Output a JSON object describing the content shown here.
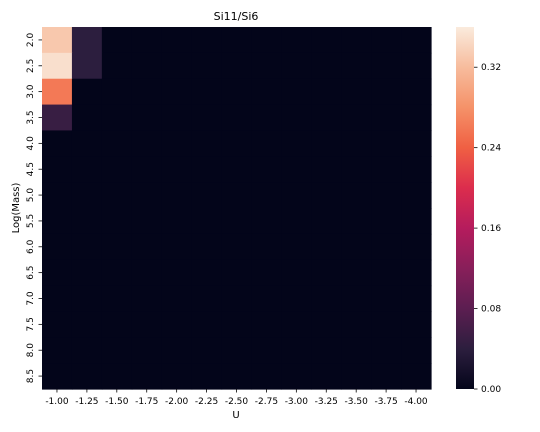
{
  "chart_data": {
    "type": "heatmap",
    "title": "Si11/Si6",
    "xlabel": "U",
    "ylabel": "Log(Mass)",
    "x_categories": [
      "-1.00",
      "-1.25",
      "-1.50",
      "-1.75",
      "-2.00",
      "-2.25",
      "-2.50",
      "-2.75",
      "-3.00",
      "-3.25",
      "-3.50",
      "-3.75",
      "-4.00"
    ],
    "y_categories": [
      "2.0",
      "2.5",
      "3.0",
      "3.5",
      "4.0",
      "4.5",
      "5.0",
      "5.5",
      "6.0",
      "6.5",
      "7.0",
      "7.5",
      "8.0",
      "8.5"
    ],
    "values": [
      [
        0.33,
        0.04,
        0,
        0,
        0,
        0,
        0,
        0,
        0,
        0,
        0,
        0,
        0
      ],
      [
        0.35,
        0.04,
        0,
        0,
        0,
        0,
        0,
        0,
        0,
        0,
        0,
        0,
        0
      ],
      [
        0.26,
        0,
        0,
        0,
        0,
        0,
        0,
        0,
        0,
        0,
        0,
        0,
        0
      ],
      [
        0.05,
        0,
        0,
        0,
        0,
        0,
        0,
        0,
        0,
        0,
        0,
        0,
        0
      ],
      [
        0,
        0,
        0,
        0,
        0,
        0,
        0,
        0,
        0,
        0,
        0,
        0,
        0
      ],
      [
        0,
        0,
        0,
        0,
        0,
        0,
        0,
        0,
        0,
        0,
        0,
        0,
        0
      ],
      [
        0,
        0,
        0,
        0,
        0,
        0,
        0,
        0,
        0,
        0,
        0,
        0,
        0
      ],
      [
        0,
        0,
        0,
        0,
        0,
        0,
        0,
        0,
        0,
        0,
        0,
        0,
        0
      ],
      [
        0,
        0,
        0,
        0,
        0,
        0,
        0,
        0,
        0,
        0,
        0,
        0,
        0
      ],
      [
        0,
        0,
        0,
        0,
        0,
        0,
        0,
        0,
        0,
        0,
        0,
        0,
        0
      ],
      [
        0,
        0,
        0,
        0,
        0,
        0,
        0,
        0,
        0,
        0,
        0,
        0,
        0
      ],
      [
        0,
        0,
        0,
        0,
        0,
        0,
        0,
        0,
        0,
        0,
        0,
        0,
        0
      ],
      [
        0,
        0,
        0,
        0,
        0,
        0,
        0,
        0,
        0,
        0,
        0,
        0,
        0
      ],
      [
        0,
        0,
        0,
        0,
        0,
        0,
        0,
        0,
        0,
        0,
        0,
        0,
        0
      ]
    ],
    "vmin": 0,
    "vmax": 0.36,
    "colorbar_ticks": [
      {
        "value": 0.0,
        "label": "0.00"
      },
      {
        "value": 0.08,
        "label": "0.08"
      },
      {
        "value": 0.16,
        "label": "0.16"
      },
      {
        "value": 0.24,
        "label": "0.24"
      },
      {
        "value": 0.32,
        "label": "0.32"
      }
    ],
    "colormap": [
      "#03051a",
      "#2c1e3e",
      "#5c1e51",
      "#881f5a",
      "#b51c5d",
      "#dc2d4d",
      "#f06043",
      "#f59269",
      "#f7bc9d",
      "#faebdd"
    ],
    "grid": false,
    "colorbar_position": "right"
  }
}
